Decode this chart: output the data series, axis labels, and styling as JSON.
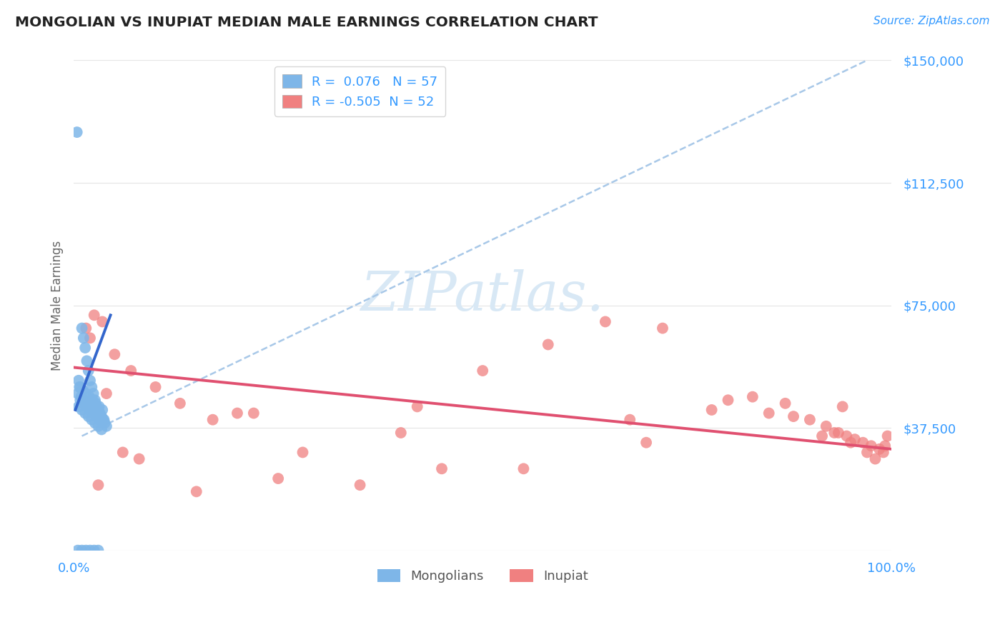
{
  "title": "MONGOLIAN VS INUPIAT MEDIAN MALE EARNINGS CORRELATION CHART",
  "source": "Source: ZipAtlas.com",
  "ylabel": "Median Male Earnings",
  "yticks": [
    0,
    37500,
    75000,
    112500,
    150000
  ],
  "ytick_labels": [
    "",
    "$37,500",
    "$75,000",
    "$112,500",
    "$150,000"
  ],
  "xlim": [
    0,
    100
  ],
  "ylim": [
    0,
    150000
  ],
  "blue_R": "0.076",
  "blue_N": 57,
  "pink_R": "-0.505",
  "pink_N": 52,
  "blue_dot_color": "#7EB6E8",
  "pink_dot_color": "#F08080",
  "blue_reg_color": "#3366CC",
  "pink_reg_color": "#E05070",
  "dashed_line_color": "#A8C8E8",
  "title_color": "#222222",
  "axis_label_color": "#3399FF",
  "watermark_color": "#D8E8F5",
  "bg_color": "#FFFFFF",
  "grid_color": "#E5E5E5",
  "mongolians_x": [
    0.4,
    0.6,
    0.8,
    1.0,
    1.2,
    1.4,
    1.6,
    1.8,
    2.0,
    2.2,
    2.4,
    2.6,
    2.8,
    3.0,
    3.2,
    3.4,
    3.6,
    3.8,
    4.0,
    0.5,
    0.9,
    1.3,
    1.7,
    2.1,
    2.5,
    2.9,
    3.3,
    3.7,
    0.7,
    1.1,
    1.5,
    1.9,
    2.3,
    2.7,
    3.1,
    3.5,
    0.6,
    1.0,
    1.4,
    1.8,
    2.2,
    2.6,
    3.0,
    3.4,
    0.8,
    1.2,
    1.6,
    2.0,
    2.4,
    2.8,
    3.2,
    0.5,
    1.0,
    1.5,
    2.0,
    2.5,
    3.0
  ],
  "mongolians_y": [
    128000,
    52000,
    50000,
    68000,
    65000,
    62000,
    58000,
    55000,
    52000,
    50000,
    48000,
    46000,
    44000,
    43000,
    42000,
    41000,
    40000,
    39000,
    38000,
    48000,
    47000,
    46000,
    45000,
    44000,
    43000,
    42000,
    41000,
    40000,
    50000,
    49000,
    48000,
    47000,
    46000,
    45000,
    44000,
    43000,
    44000,
    43000,
    42000,
    41000,
    40000,
    39000,
    38000,
    37000,
    46000,
    45000,
    44000,
    43000,
    42000,
    41000,
    40000,
    0,
    0,
    0,
    0,
    0,
    0
  ],
  "inupiat_x": [
    1.5,
    2.5,
    3.5,
    5.0,
    7.0,
    10.0,
    13.0,
    17.0,
    22.0,
    28.0,
    35.0,
    42.0,
    50.0,
    58.0,
    65.0,
    72.0,
    78.0,
    83.0,
    87.0,
    90.0,
    92.0,
    93.5,
    94.5,
    95.5,
    96.5,
    97.5,
    98.5,
    99.0,
    99.5,
    2.0,
    4.0,
    8.0,
    15.0,
    25.0,
    40.0,
    55.0,
    68.0,
    80.0,
    88.0,
    91.5,
    93.0,
    95.0,
    97.0,
    99.2,
    3.0,
    6.0,
    20.0,
    45.0,
    70.0,
    85.0,
    94.0,
    98.0
  ],
  "inupiat_y": [
    68000,
    72000,
    70000,
    60000,
    55000,
    50000,
    45000,
    40000,
    42000,
    30000,
    20000,
    44000,
    55000,
    63000,
    70000,
    68000,
    43000,
    47000,
    45000,
    40000,
    38000,
    36000,
    35000,
    34000,
    33000,
    32000,
    31000,
    30000,
    35000,
    65000,
    48000,
    28000,
    18000,
    22000,
    36000,
    25000,
    40000,
    46000,
    41000,
    35000,
    36000,
    33000,
    30000,
    32000,
    20000,
    30000,
    42000,
    25000,
    33000,
    42000,
    44000,
    28000
  ]
}
